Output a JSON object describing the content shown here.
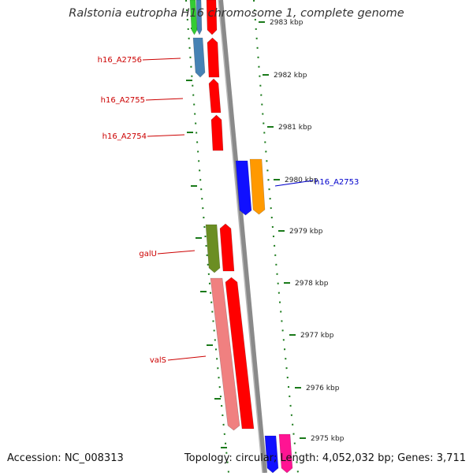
{
  "title": "Ralstonia eutropha H16 chromosome 1, complete genome",
  "footer": {
    "accession": "Accession: NC_008313",
    "summary": "Topology: circular; Length: 4,052,032 bp; Genes: 3,711"
  },
  "scale_ticks": [
    {
      "label": "2983 kbp",
      "kbp": 2983
    },
    {
      "label": "2982 kbp",
      "kbp": 2982
    },
    {
      "label": "2981 kbp",
      "kbp": 2981
    },
    {
      "label": "2980 kbp",
      "kbp": 2980
    },
    {
      "label": "2979 kbp",
      "kbp": 2979
    },
    {
      "label": "2978 kbp",
      "kbp": 2978
    },
    {
      "label": "2977 kbp",
      "kbp": 2977
    },
    {
      "label": "2976 kbp",
      "kbp": 2976
    },
    {
      "label": "2975 kbp",
      "kbp": 2975
    }
  ],
  "gene_labels": [
    {
      "text": "h16_A2756",
      "color": "#cc0000"
    },
    {
      "text": "h16_A2755",
      "color": "#cc0000"
    },
    {
      "text": "h16_A2754",
      "color": "#cc0000"
    },
    {
      "text": "h16_A2753",
      "color": "#0000cc"
    },
    {
      "text": "galU",
      "color": "#cc0000"
    },
    {
      "text": "valS",
      "color": "#cc0000"
    }
  ],
  "colors": {
    "backbone": "#8a8a8a",
    "tick": "#1a7a1a",
    "cds_red": "#ff0000",
    "blue": "#1010ff",
    "orange": "#ff9900",
    "olive": "#6b8e23",
    "pink": "#f08080",
    "steel": "#4682b4",
    "magenta": "#ff1493",
    "green": "#33cc33"
  }
}
